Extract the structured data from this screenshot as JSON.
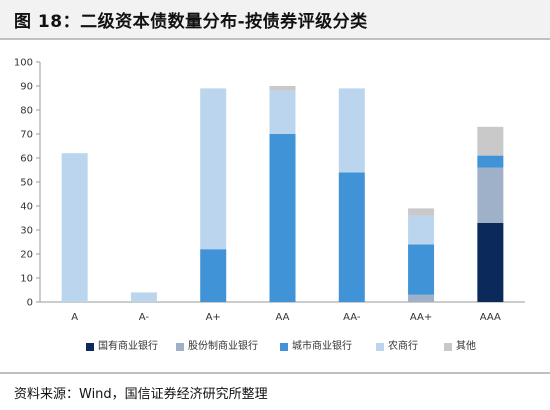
{
  "header": {
    "title": "图 18：二级资本债数量分布-按债券评级分类"
  },
  "footer": {
    "source": "资料来源：Wind，国信证券经济研究所整理"
  },
  "chart_data": {
    "type": "bar",
    "stacked": true,
    "title": "",
    "xlabel": "",
    "ylabel": "",
    "ylim": [
      0,
      100
    ],
    "yticks": [
      0,
      10,
      20,
      30,
      40,
      50,
      60,
      70,
      80,
      90,
      100
    ],
    "grid": false,
    "legend_position": "bottom",
    "categories": [
      "A",
      "A-",
      "A+",
      "AA",
      "AA-",
      "AA+",
      "AAA"
    ],
    "series": [
      {
        "name": "国有商业银行",
        "color": "#0b2a5b",
        "values": [
          0,
          0,
          0,
          0,
          0,
          0,
          33
        ]
      },
      {
        "name": "股份制商业银行",
        "color": "#9fb1c8",
        "values": [
          0,
          0,
          0,
          0,
          0,
          3,
          23
        ]
      },
      {
        "name": "城市商业银行",
        "color": "#3f93d6",
        "values": [
          0,
          0,
          22,
          70,
          54,
          21,
          5
        ]
      },
      {
        "name": "农商行",
        "color": "#bcd5ee",
        "values": [
          62,
          4,
          67,
          18,
          35,
          12,
          0
        ]
      },
      {
        "name": "其他",
        "color": "#c9c9c9",
        "values": [
          0,
          0,
          0,
          2,
          0,
          3,
          12
        ]
      }
    ]
  }
}
